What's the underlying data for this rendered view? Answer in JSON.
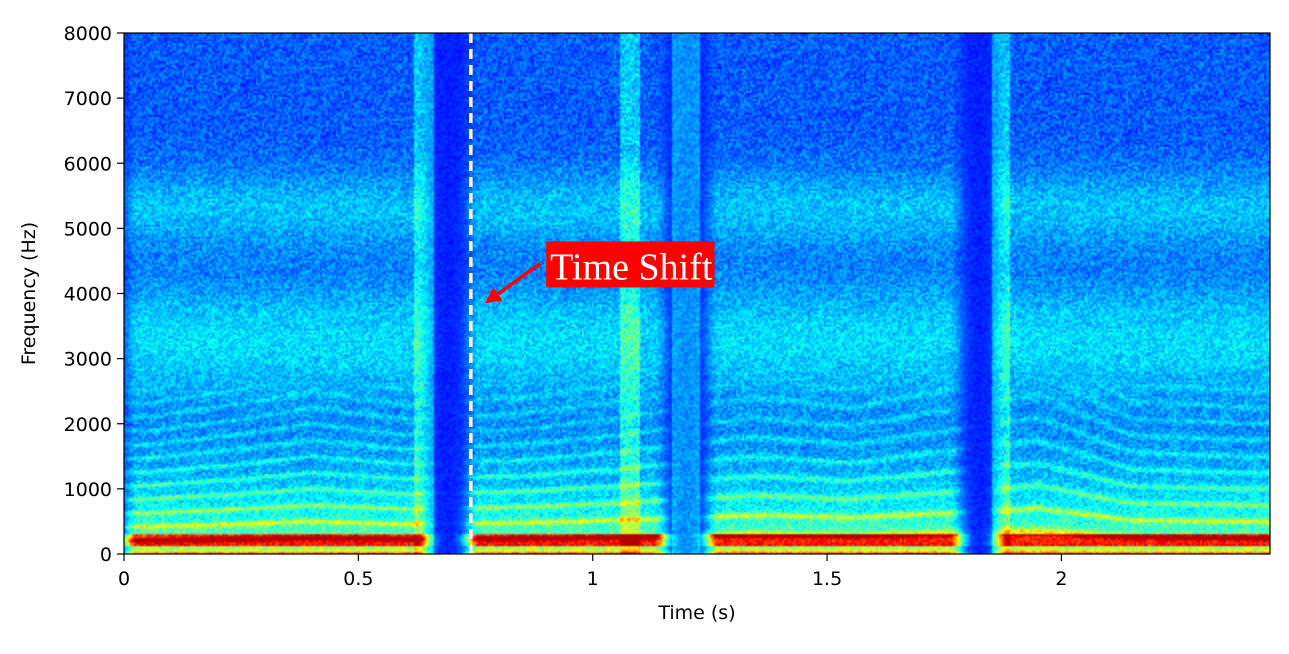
{
  "chart_data": {
    "type": "heatmap",
    "subtype": "spectrogram",
    "colormap": "jet",
    "xlabel": "Time (s)",
    "ylabel": "Frequency (Hz)",
    "xlim": [
      0,
      2.445
    ],
    "ylim": [
      0,
      8000
    ],
    "xticks": [
      {
        "value": 0,
        "label": "0"
      },
      {
        "value": 0.5,
        "label": "0.5"
      },
      {
        "value": 1,
        "label": "1"
      },
      {
        "value": 1.5,
        "label": "1.5"
      },
      {
        "value": 2,
        "label": "2"
      }
    ],
    "yticks": [
      {
        "value": 0,
        "label": "0"
      },
      {
        "value": 1000,
        "label": "1000"
      },
      {
        "value": 2000,
        "label": "2000"
      },
      {
        "value": 3000,
        "label": "3000"
      },
      {
        "value": 4000,
        "label": "4000"
      },
      {
        "value": 5000,
        "label": "5000"
      },
      {
        "value": 6000,
        "label": "6000"
      },
      {
        "value": 7000,
        "label": "7000"
      },
      {
        "value": 8000,
        "label": "8000"
      }
    ],
    "marker_line": {
      "x": 0.74,
      "style": "dashed",
      "color": "#ffffff"
    },
    "annotation": {
      "text": "Time Shift",
      "text_at": {
        "x": 0.905,
        "y": 4400
      },
      "arrow_to": {
        "x": 0.77,
        "y": 3850
      },
      "color": "#ff0000",
      "text_color": "#ffffff"
    },
    "speech_segments": [
      [
        0.03,
        0.24
      ],
      [
        0.25,
        0.62
      ],
      [
        0.76,
        0.98
      ],
      [
        1.0,
        1.13
      ],
      [
        1.27,
        1.57
      ],
      [
        1.58,
        1.76
      ],
      [
        1.89,
        2.18
      ],
      [
        2.2,
        2.44
      ]
    ],
    "pitch_track": [
      {
        "x": 0.05,
        "y": 210
      },
      {
        "x": 0.25,
        "y": 230
      },
      {
        "x": 0.4,
        "y": 250
      },
      {
        "x": 0.6,
        "y": 230
      },
      {
        "x": 0.85,
        "y": 240
      },
      {
        "x": 1.05,
        "y": 260
      },
      {
        "x": 1.35,
        "y": 300
      },
      {
        "x": 1.55,
        "y": 280
      },
      {
        "x": 1.95,
        "y": 350
      },
      {
        "x": 2.15,
        "y": 260
      },
      {
        "x": 2.4,
        "y": 250
      }
    ]
  }
}
